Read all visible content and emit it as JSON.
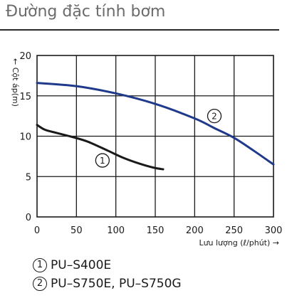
{
  "title": "Đường đặc tính bơm",
  "chart_data": {
    "type": "line",
    "ylabel": "← Cột áp(m)",
    "xlabel": "Lưu lượng (ℓ/phút) →",
    "xlim": [
      0,
      300
    ],
    "ylim": [
      0,
      20
    ],
    "x_ticks": [
      0,
      50,
      100,
      150,
      200,
      250,
      300
    ],
    "y_ticks": [
      0,
      5,
      10,
      15,
      20
    ],
    "grid": true,
    "series": [
      {
        "name": "PU–S400E",
        "marker_label": "1",
        "color": "#1a1a1a",
        "points": [
          [
            0,
            11.4
          ],
          [
            10,
            10.8
          ],
          [
            25,
            10.4
          ],
          [
            45,
            9.9
          ],
          [
            65,
            9.3
          ],
          [
            90,
            8.2
          ],
          [
            110,
            7.3
          ],
          [
            130,
            6.6
          ],
          [
            148,
            6.1
          ],
          [
            160,
            5.9
          ]
        ]
      },
      {
        "name": "PU–S750E, PU–S750G",
        "marker_label": "2",
        "color": "#1f3a8a",
        "points": [
          [
            0,
            16.6
          ],
          [
            50,
            16.2
          ],
          [
            100,
            15.3
          ],
          [
            150,
            14.0
          ],
          [
            200,
            12.2
          ],
          [
            225,
            11.0
          ],
          [
            250,
            9.8
          ],
          [
            275,
            8.2
          ],
          [
            300,
            6.5
          ]
        ]
      }
    ]
  }
}
